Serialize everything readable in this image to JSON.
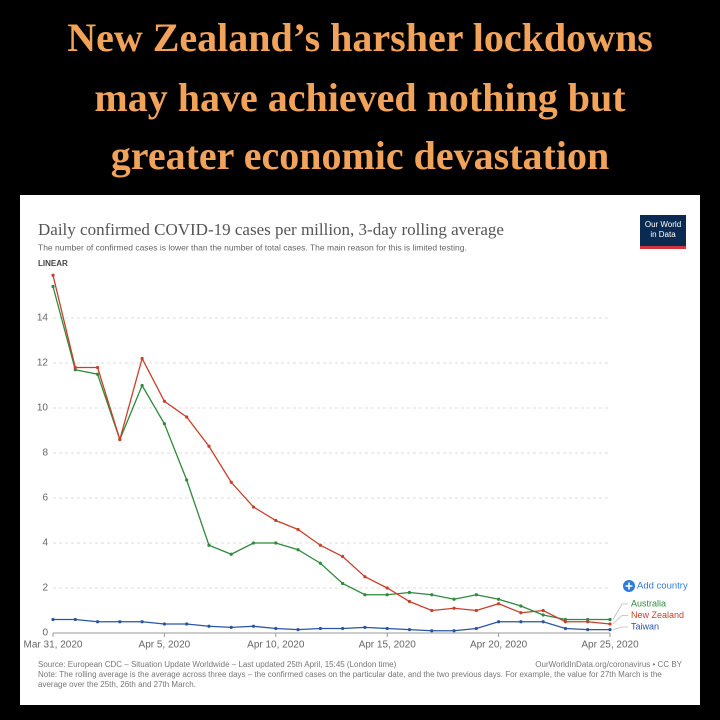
{
  "headline": [
    "New Zealand’s harsher lockdowns",
    "may have achieved nothing but",
    "greater economic devastation"
  ],
  "chart_data": {
    "type": "line",
    "title": "Daily confirmed COVID-19 cases per million, 3-day rolling average",
    "subtitle": "The number of confirmed cases is lower than the number of total cases. The main reason for this is limited testing.",
    "scale_label": "LINEAR",
    "logo": [
      "Our World",
      "in Data"
    ],
    "add_country": "Add country",
    "source": "Source: European CDC – Situation Update Worldwide – Last updated 25th April, 15:45 (London time)",
    "credit": "OurWorldInData.org/coronavirus • CC BY",
    "note": "Note: The rolling average is the average across three days – the confirmed cases on the particular date, and the two previous days. For example, the value for 27th March is the average over the 25th, 26th and 27th March.",
    "categories": [
      "Mar 31, 2020",
      null,
      null,
      null,
      null,
      "Apr 5, 2020",
      null,
      null,
      null,
      null,
      "Apr 10, 2020",
      null,
      null,
      null,
      null,
      "Apr 15, 2020",
      null,
      null,
      null,
      null,
      "Apr 20, 2020",
      null,
      null,
      null,
      null,
      "Apr 25, 2020"
    ],
    "series": [
      {
        "name": "Australia",
        "color": "#2f8a3b",
        "values": [
          15.4,
          11.7,
          11.5,
          8.6,
          11.0,
          9.3,
          6.8,
          3.9,
          3.5,
          4.0,
          4.0,
          3.7,
          3.1,
          2.2,
          1.7,
          1.7,
          1.8,
          1.7,
          1.5,
          1.7,
          1.5,
          1.2,
          0.8,
          0.6,
          0.6,
          0.6
        ]
      },
      {
        "name": "New Zealand",
        "color": "#c8402b",
        "values": [
          15.9,
          11.8,
          11.8,
          8.6,
          12.2,
          10.3,
          9.6,
          8.3,
          6.7,
          5.6,
          5.0,
          4.6,
          3.9,
          3.4,
          2.5,
          2.0,
          1.4,
          1.0,
          1.1,
          1.0,
          1.3,
          0.9,
          1.0,
          0.5,
          0.5,
          0.4
        ]
      },
      {
        "name": "Taiwan",
        "color": "#2a55a3",
        "values": [
          0.6,
          0.6,
          0.5,
          0.5,
          0.5,
          0.4,
          0.4,
          0.3,
          0.25,
          0.3,
          0.2,
          0.15,
          0.2,
          0.2,
          0.25,
          0.2,
          0.15,
          0.1,
          0.1,
          0.2,
          0.5,
          0.5,
          0.5,
          0.2,
          0.15,
          0.15
        ]
      }
    ],
    "ylim": [
      0,
      16
    ],
    "yticks": [
      0,
      2,
      4,
      6,
      8,
      10,
      12,
      14
    ],
    "grid": true
  }
}
